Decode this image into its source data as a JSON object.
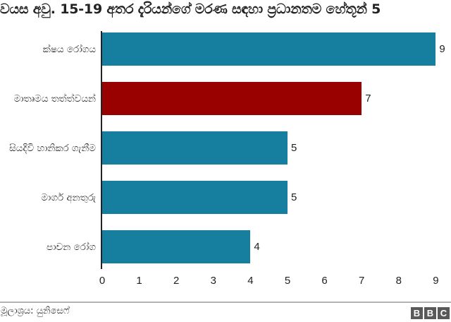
{
  "title": "වයස අවු. 15-19 අතර දැරියන්ගේ මරණ සඳහා ප්‍රධානතම හේතූන් 5",
  "footer": {
    "source": "මූලාශ්‍රය: යුනිසෙෆ්",
    "logo": [
      "B",
      "B",
      "C"
    ]
  },
  "colors": {
    "bar_default": "#167e9e",
    "bar_highlight": "#990000",
    "axis": "#222222",
    "separator": "#b3b3b3"
  },
  "bars": [
    {
      "label": "ක්ෂය රෝගය",
      "value": 9,
      "display": "9",
      "highlight": false
    },
    {
      "label": "මාතෘමය තත්ත්වයන්",
      "value": 7,
      "display": "7",
      "highlight": true
    },
    {
      "label": "සියදිවි හානිකර ගැනීම",
      "value": 5,
      "display": "5",
      "highlight": false
    },
    {
      "label": "මාර්ග අනතුරු",
      "value": 5,
      "display": "5",
      "highlight": false
    },
    {
      "label": "පාචන රෝග",
      "value": 4,
      "display": "4",
      "highlight": false
    }
  ],
  "ticks": [
    "0",
    "1",
    "2",
    "3",
    "4",
    "5",
    "6",
    "7",
    "8",
    "9"
  ],
  "chart_data": {
    "type": "bar",
    "orientation": "horizontal",
    "title": "වයස අවු. 15-19 අතර දැරියන්ගේ මරණ සඳහා ප්‍රධානතම හේතූන් 5",
    "categories": [
      "ක්ෂය රෝගය",
      "මාතෘමය තත්ත්වයන්",
      "සියදිවි හානිකර ගැනීම",
      "මාර්ග අනතුරු",
      "පාචන රෝග"
    ],
    "values": [
      9,
      7,
      5,
      5,
      4
    ],
    "highlighted_category": "මාතෘමය තත්ත්වයන්",
    "xlabel": "",
    "ylabel": "",
    "xlim": [
      0,
      9
    ],
    "x_ticks": [
      0,
      1,
      2,
      3,
      4,
      5,
      6,
      7,
      8,
      9
    ],
    "grid": false,
    "legend": null,
    "data_labels": true,
    "source": "මූලාශ්‍රය: යුනිසෙෆ්"
  }
}
